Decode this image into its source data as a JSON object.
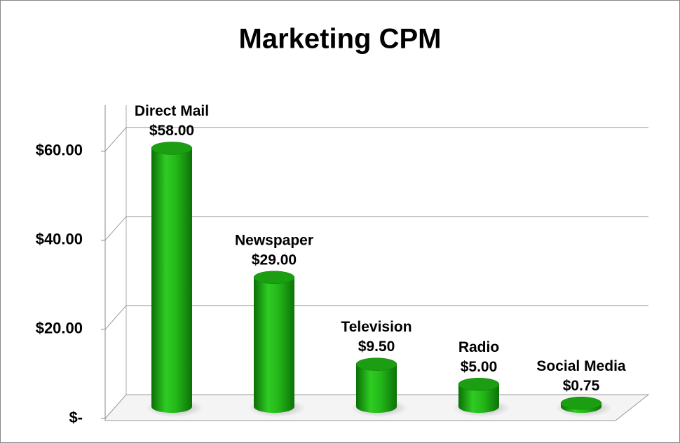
{
  "chart_data": {
    "type": "bar3d",
    "title": "Marketing CPM",
    "categories": [
      "Direct Mail",
      "Newspaper",
      "Television",
      "Radio",
      "Social Media"
    ],
    "values": [
      58,
      29,
      9.5,
      5,
      0.75
    ],
    "value_labels": [
      "$58.00",
      "$29.00",
      "$9.50",
      "$5.00",
      "$0.75"
    ],
    "color": "#22b01a",
    "ylim": [
      0,
      65
    ],
    "yticks": [
      {
        "value": 0,
        "label": "$-"
      },
      {
        "value": 20,
        "label": "$20.00"
      },
      {
        "value": 40,
        "label": "$40.00"
      },
      {
        "value": 60,
        "label": "$60.00"
      }
    ],
    "grid": true
  }
}
